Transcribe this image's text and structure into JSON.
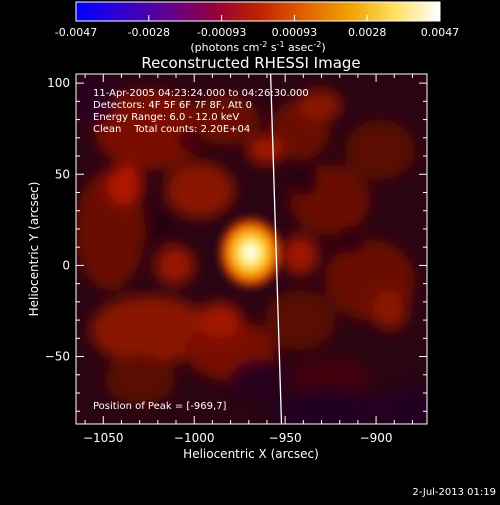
{
  "colorbar": {
    "tick_labels": [
      "-0.0047",
      "-0.0028",
      "-0.00093",
      "0.00093",
      "0.0028",
      "0.0047"
    ],
    "unit_prefix": "(photons cm",
    "unit_exp1": "-2",
    "unit_mid": " s",
    "unit_exp2": "-1",
    "unit_mid2": " asec",
    "unit_exp3": "-2",
    "unit_suffix": ")",
    "colors": [
      "#0000ff",
      "#3000d0",
      "#600090",
      "#900040",
      "#c02000",
      "#e06000",
      "#f0a000",
      "#ffe060",
      "#ffffff"
    ]
  },
  "chart_data": {
    "type": "heatmap",
    "title": "Reconstructed RHESSI Image",
    "xlabel": "Heliocentric X (arcsec)",
    "ylabel": "Heliocentric Y (arcsec)",
    "xlim": [
      -1065,
      -872
    ],
    "ylim": [
      -87,
      105
    ],
    "xticks": [
      -1050,
      -1000,
      -950,
      -900
    ],
    "xtick_labels": [
      "−1050",
      "−1000",
      "−950",
      "−900"
    ],
    "yticks": [
      -50,
      0,
      50,
      100
    ],
    "ytick_labels": [
      "−50",
      "0",
      "50",
      "100"
    ],
    "zlim": [
      -0.0047,
      0.0047
    ],
    "peak": [
      -969,
      7
    ],
    "peak_value": 0.0047,
    "limb_x_at_ymin": -952,
    "limb_x_at_ymax": -958,
    "annotations": {
      "time_range": "11-Apr-2005 04:23:24.000 to 04:26:30.000",
      "detectors": "Detectors: 4F 5F 6F 7F 8F, Att 0",
      "energy": "Energy Range: 6.0 - 12.0 keV",
      "clean": "Clean    Total counts: 2.20E+04",
      "peak_position": "Position of Peak = [-969,7]"
    }
  },
  "footer": {
    "timestamp": "2-Jul-2013 01:19"
  }
}
